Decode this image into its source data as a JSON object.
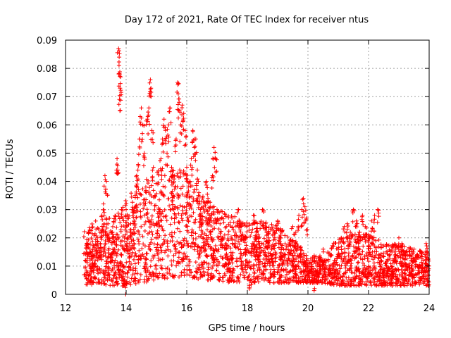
{
  "chart_data": {
    "type": "scatter",
    "title": "Day 172 of 2021, Rate Of TEC Index for receiver ntus",
    "xlabel": "GPS time / hours",
    "ylabel": "ROTI / TECUs",
    "xlim": [
      12,
      24
    ],
    "ylim": [
      0,
      0.09
    ],
    "xticks": [
      "12",
      "14",
      "16",
      "18",
      "20",
      "22",
      "24"
    ],
    "yticks": [
      "0",
      "0.01",
      "0.02",
      "0.03",
      "0.04",
      "0.05",
      "0.06",
      "0.07",
      "0.08",
      "0.09"
    ],
    "grid": true,
    "marker": "+",
    "color": "#ff0000",
    "series": [
      {
        "name": "ROTI",
        "points": [
          [
            12.65,
            0.012
          ],
          [
            12.7,
            0.018
          ],
          [
            12.75,
            0.022
          ],
          [
            12.8,
            0.015
          ],
          [
            12.85,
            0.009
          ],
          [
            12.9,
            0.014
          ],
          [
            12.95,
            0.011
          ],
          [
            13.0,
            0.016
          ],
          [
            13.05,
            0.02
          ],
          [
            13.1,
            0.013
          ],
          [
            13.15,
            0.018
          ],
          [
            13.2,
            0.028
          ],
          [
            13.25,
            0.032
          ],
          [
            13.3,
            0.042
          ],
          [
            13.35,
            0.04
          ],
          [
            13.4,
            0.025
          ],
          [
            13.45,
            0.019
          ],
          [
            13.5,
            0.014
          ],
          [
            13.55,
            0.022
          ],
          [
            13.6,
            0.016
          ],
          [
            13.65,
            0.02
          ],
          [
            13.7,
            0.048
          ],
          [
            13.72,
            0.044
          ],
          [
            13.75,
            0.087
          ],
          [
            13.77,
            0.084
          ],
          [
            13.79,
            0.078
          ],
          [
            13.8,
            0.073
          ],
          [
            13.78,
            0.069
          ],
          [
            13.85,
            0.03
          ],
          [
            13.9,
            0.008
          ],
          [
            13.95,
            0.004
          ],
          [
            14.0,
            0.03
          ],
          [
            14.05,
            0.02
          ],
          [
            14.1,
            0.018
          ],
          [
            14.15,
            0.025
          ],
          [
            14.2,
            0.03
          ],
          [
            14.25,
            0.023
          ],
          [
            14.3,
            0.035
          ],
          [
            14.35,
            0.042
          ],
          [
            14.4,
            0.046
          ],
          [
            14.45,
            0.055
          ],
          [
            14.5,
            0.066
          ],
          [
            14.55,
            0.06
          ],
          [
            14.6,
            0.05
          ],
          [
            14.65,
            0.038
          ],
          [
            14.7,
            0.062
          ],
          [
            14.75,
            0.066
          ],
          [
            14.8,
            0.076
          ],
          [
            14.82,
            0.073
          ],
          [
            14.85,
            0.058
          ],
          [
            14.9,
            0.045
          ],
          [
            14.95,
            0.035
          ],
          [
            15.0,
            0.025
          ],
          [
            15.05,
            0.02
          ],
          [
            15.1,
            0.03
          ],
          [
            15.15,
            0.048
          ],
          [
            15.2,
            0.055
          ],
          [
            15.25,
            0.062
          ],
          [
            15.3,
            0.058
          ],
          [
            15.35,
            0.05
          ],
          [
            15.4,
            0.06
          ],
          [
            15.45,
            0.066
          ],
          [
            15.5,
            0.045
          ],
          [
            15.55,
            0.035
          ],
          [
            15.6,
            0.042
          ],
          [
            15.65,
            0.055
          ],
          [
            15.7,
            0.075
          ],
          [
            15.72,
            0.071
          ],
          [
            15.75,
            0.068
          ],
          [
            15.8,
            0.06
          ],
          [
            15.85,
            0.067
          ],
          [
            15.9,
            0.064
          ],
          [
            15.95,
            0.058
          ],
          [
            16.0,
            0.045
          ],
          [
            16.05,
            0.038
          ],
          [
            16.1,
            0.04
          ],
          [
            16.15,
            0.048
          ],
          [
            16.2,
            0.058
          ],
          [
            16.25,
            0.052
          ],
          [
            16.3,
            0.055
          ],
          [
            16.35,
            0.044
          ],
          [
            16.4,
            0.036
          ],
          [
            16.45,
            0.03
          ],
          [
            16.5,
            0.025
          ],
          [
            16.55,
            0.02
          ],
          [
            16.6,
            0.032
          ],
          [
            16.65,
            0.04
          ],
          [
            16.7,
            0.034
          ],
          [
            16.75,
            0.028
          ],
          [
            16.8,
            0.022
          ],
          [
            16.85,
            0.042
          ],
          [
            16.9,
            0.052
          ],
          [
            16.95,
            0.048
          ],
          [
            17.0,
            0.03
          ],
          [
            17.1,
            0.025
          ],
          [
            17.2,
            0.02
          ],
          [
            17.3,
            0.016
          ],
          [
            17.4,
            0.012
          ],
          [
            17.5,
            0.018
          ],
          [
            17.6,
            0.022
          ],
          [
            17.7,
            0.03
          ],
          [
            17.8,
            0.025
          ],
          [
            17.9,
            0.02
          ],
          [
            18.0,
            0.016
          ],
          [
            18.1,
            0.005
          ],
          [
            18.2,
            0.028
          ],
          [
            18.3,
            0.022
          ],
          [
            18.4,
            0.018
          ],
          [
            18.5,
            0.03
          ],
          [
            18.6,
            0.025
          ],
          [
            18.7,
            0.02
          ],
          [
            18.8,
            0.016
          ],
          [
            18.9,
            0.022
          ],
          [
            19.0,
            0.026
          ],
          [
            19.1,
            0.02
          ],
          [
            19.2,
            0.016
          ],
          [
            19.3,
            0.012
          ],
          [
            19.4,
            0.018
          ],
          [
            19.5,
            0.024
          ],
          [
            19.6,
            0.022
          ],
          [
            19.7,
            0.028
          ],
          [
            19.8,
            0.03
          ],
          [
            19.85,
            0.034
          ],
          [
            19.9,
            0.031
          ],
          [
            19.95,
            0.027
          ],
          [
            20.0,
            0.012
          ],
          [
            20.1,
            0.009
          ],
          [
            20.2,
            0.007
          ],
          [
            20.3,
            0.01
          ],
          [
            20.4,
            0.013
          ],
          [
            20.5,
            0.016
          ],
          [
            20.6,
            0.012
          ],
          [
            20.7,
            0.01
          ],
          [
            20.8,
            0.009
          ],
          [
            20.9,
            0.012
          ],
          [
            21.0,
            0.016
          ],
          [
            21.1,
            0.02
          ],
          [
            21.2,
            0.024
          ],
          [
            21.3,
            0.025
          ],
          [
            21.4,
            0.022
          ],
          [
            21.5,
            0.03
          ],
          [
            21.6,
            0.026
          ],
          [
            21.7,
            0.022
          ],
          [
            21.8,
            0.028
          ],
          [
            21.9,
            0.024
          ],
          [
            22.0,
            0.02
          ],
          [
            22.1,
            0.026
          ],
          [
            22.2,
            0.028
          ],
          [
            22.3,
            0.03
          ],
          [
            22.4,
            0.012
          ],
          [
            22.5,
            0.008
          ],
          [
            22.6,
            0.01
          ],
          [
            22.7,
            0.014
          ],
          [
            22.8,
            0.012
          ],
          [
            22.9,
            0.016
          ],
          [
            23.0,
            0.02
          ],
          [
            23.1,
            0.018
          ],
          [
            23.2,
            0.014
          ],
          [
            23.3,
            0.01
          ],
          [
            23.4,
            0.012
          ],
          [
            23.5,
            0.016
          ],
          [
            23.6,
            0.014
          ],
          [
            23.7,
            0.01
          ],
          [
            23.8,
            0.012
          ],
          [
            23.9,
            0.018
          ],
          [
            23.95,
            0.008
          ]
        ],
        "band": [
          [
            12.6,
            0.003,
            0.024
          ],
          [
            13.0,
            0.004,
            0.026
          ],
          [
            13.5,
            0.003,
            0.028
          ],
          [
            14.0,
            0.003,
            0.034
          ],
          [
            14.5,
            0.004,
            0.04
          ],
          [
            15.0,
            0.005,
            0.044
          ],
          [
            15.5,
            0.006,
            0.046
          ],
          [
            16.0,
            0.006,
            0.044
          ],
          [
            16.5,
            0.005,
            0.036
          ],
          [
            17.0,
            0.005,
            0.03
          ],
          [
            17.5,
            0.004,
            0.028
          ],
          [
            18.0,
            0.004,
            0.026
          ],
          [
            18.5,
            0.004,
            0.026
          ],
          [
            19.0,
            0.004,
            0.024
          ],
          [
            19.5,
            0.004,
            0.02
          ],
          [
            20.0,
            0.004,
            0.014
          ],
          [
            20.5,
            0.004,
            0.014
          ],
          [
            21.0,
            0.003,
            0.02
          ],
          [
            21.5,
            0.003,
            0.022
          ],
          [
            22.0,
            0.003,
            0.022
          ],
          [
            22.5,
            0.003,
            0.018
          ],
          [
            23.0,
            0.003,
            0.018
          ],
          [
            23.5,
            0.003,
            0.016
          ],
          [
            24.0,
            0.003,
            0.016
          ]
        ]
      }
    ]
  }
}
